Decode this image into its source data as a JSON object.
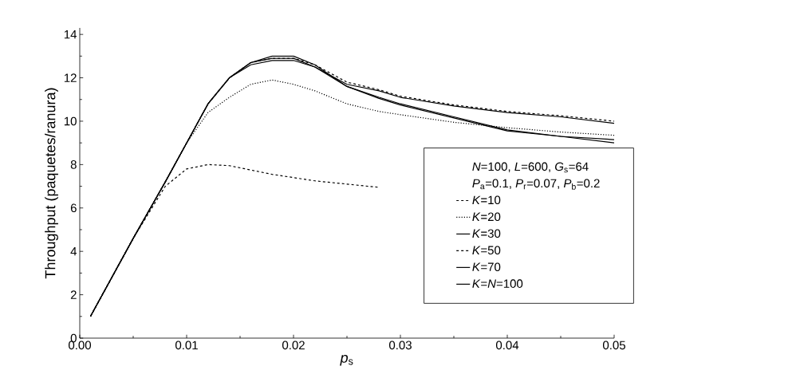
{
  "chart_data": {
    "type": "line",
    "xlabel": "*p*$_{s}$",
    "ylabel": "Throughput (paquetes/ranura)",
    "x": [
      0.001,
      0.005,
      0.008,
      0.01,
      0.012,
      0.014,
      0.016,
      0.018,
      0.02,
      0.022,
      0.025,
      0.028,
      0.03,
      0.035,
      0.04,
      0.045,
      0.05
    ],
    "series": [
      {
        "name": "*K*=10",
        "color": "#000000",
        "line_style": "dashed",
        "values": [
          1,
          4.6,
          7.0,
          7.8,
          8.0,
          7.95,
          7.75,
          7.55,
          7.4,
          7.25,
          7.1,
          6.95,
          null,
          null,
          null,
          null,
          null
        ]
      },
      {
        "name": "*K*=20",
        "color": "#000000",
        "line_style": "dotted",
        "values": [
          1,
          4.6,
          7.2,
          9.0,
          10.4,
          11.1,
          11.7,
          11.9,
          11.7,
          11.4,
          10.8,
          10.45,
          10.3,
          9.95,
          9.7,
          9.5,
          9.35
        ]
      },
      {
        "name": "*K*=30",
        "color": "#000000",
        "line_style": "solid",
        "values": [
          1,
          4.6,
          7.2,
          9.0,
          10.8,
          12.0,
          12.6,
          12.8,
          12.8,
          12.5,
          11.7,
          11.4,
          11.1,
          10.7,
          10.4,
          10.2,
          9.9
        ]
      },
      {
        "name": "*K*=50",
        "color": "#000000",
        "line_style": "dashed",
        "values": [
          1,
          4.6,
          7.2,
          9.0,
          10.8,
          12.0,
          12.7,
          12.9,
          12.9,
          12.6,
          11.8,
          11.45,
          11.15,
          10.75,
          10.45,
          10.25,
          10.0
        ]
      },
      {
        "name": "*K*=70",
        "color": "#000000",
        "line_style": "solid",
        "values": [
          1,
          4.6,
          7.2,
          9.0,
          10.8,
          12.0,
          12.7,
          12.9,
          12.9,
          12.5,
          11.6,
          11.1,
          10.8,
          10.2,
          9.6,
          9.3,
          9.0
        ]
      },
      {
        "name": "*K*=*N*=100",
        "color": "#000000",
        "line_style": "solid",
        "values": [
          1,
          4.6,
          7.2,
          9.0,
          10.8,
          12.0,
          12.7,
          13.0,
          13.0,
          12.6,
          11.6,
          11.05,
          10.75,
          10.15,
          9.55,
          9.3,
          9.15
        ]
      }
    ],
    "annotations": [
      "*N*=100, *L*=600, *G*$_{s}$=64",
      "*P*$_{a}$=0.1, *P*$_{r}$=0.07, *P*$_{b}$=0.2"
    ],
    "xlim": [
      0,
      0.05
    ],
    "xticks": [
      {
        "value": 0,
        "label": "0.00"
      },
      0.01,
      0.02,
      0.03,
      0.04,
      0.05
    ],
    "ylim": [
      0,
      14.3
    ],
    "yticks": [
      0,
      2,
      4,
      6,
      8,
      10,
      12,
      14
    ],
    "grid": false,
    "legend": "bottom right"
  }
}
